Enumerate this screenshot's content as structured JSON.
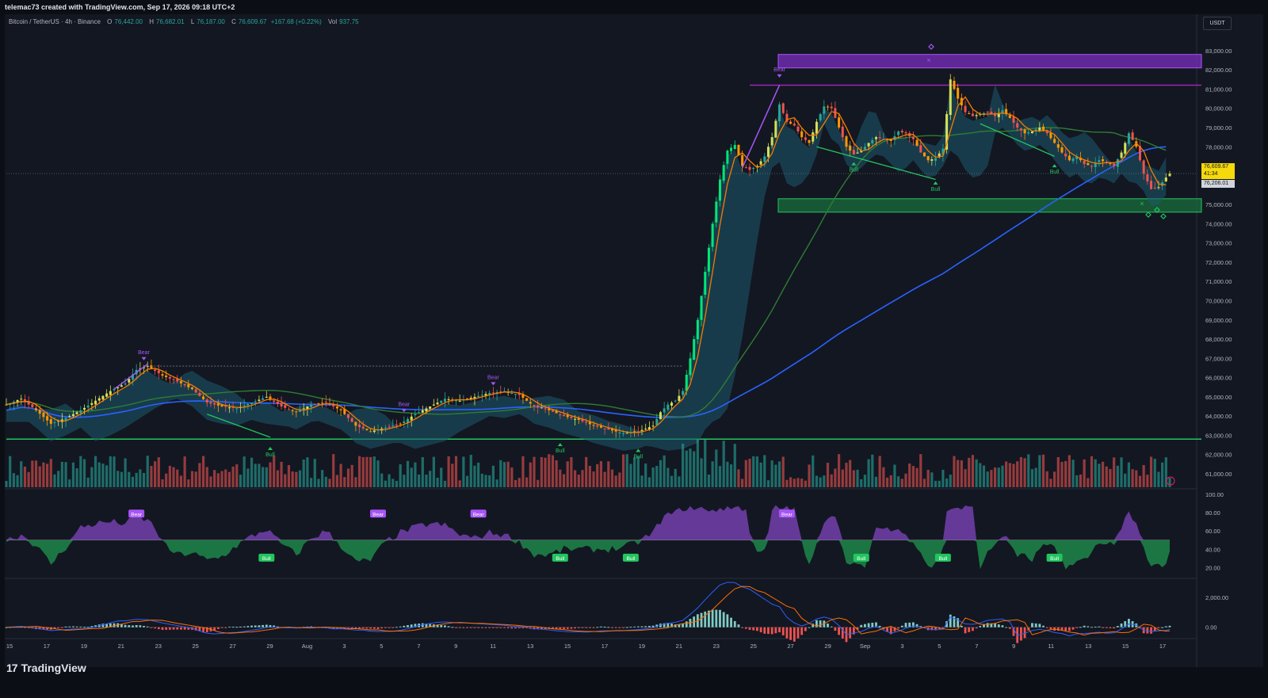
{
  "header": {
    "attribution": "telemac73 created with TradingView.com, Sep 17, 2026 09:18 UTC+2"
  },
  "legend": {
    "symbol": "Bitcoin / TetherUS · 4h · Binance",
    "open_label": "O",
    "open": "76,442.00",
    "high_label": "H",
    "high": "76,682.01",
    "low_label": "L",
    "low": "76,187.00",
    "close_label": "C",
    "close": "76,609.67",
    "change": "+167.68 (+0.22%)",
    "vol_label": "Vol",
    "vol": "937.75"
  },
  "currency_button": "USDT",
  "brand": {
    "name": "TradingView"
  },
  "colors": {
    "up": "#26a69a",
    "down": "#ef5350",
    "bull_green": "#22c55e",
    "bear_purple": "#a855f7",
    "ema_blue": "#2962ff",
    "ema_green": "#2e7d32",
    "ema_orange": "#f57c00",
    "cloud": "#1e5a6e"
  },
  "price_tags": {
    "last": "76,609.67",
    "countdown": "41:34",
    "secondary": "76,206.01"
  },
  "chart_data": [
    {
      "type": "candlestick",
      "pane": "price",
      "interval": "4h",
      "y_ticks": [
        "83,000.00",
        "82,000.00",
        "81,000.00",
        "80,000.00",
        "79,000.00",
        "78,000.00",
        "77,000.00",
        "75,000.00",
        "74,000.00",
        "73,000.00",
        "72,000.00",
        "71,000.00",
        "70,000.00",
        "69,000.00",
        "68,000.00",
        "67,000.00",
        "66,000.00",
        "65,000.00",
        "64,000.00",
        "63,000.00",
        "62,000.00",
        "61,000.00"
      ],
      "y_tick_values": [
        83000,
        82000,
        81000,
        80000,
        79000,
        78000,
        77000,
        75000,
        74000,
        73000,
        72000,
        71000,
        70000,
        69000,
        68000,
        67000,
        66000,
        65000,
        64000,
        63000,
        62000,
        61000
      ],
      "ylim": [
        60300,
        83900
      ],
      "x_ticks": [
        "15",
        "17",
        "19",
        "21",
        "23",
        "25",
        "27",
        "29",
        "Aug",
        "3",
        "5",
        "7",
        "9",
        "11",
        "13",
        "15",
        "17",
        "19",
        "21",
        "23",
        "25",
        "27",
        "29",
        "Sep",
        "3",
        "5",
        "7",
        "9",
        "11",
        "13",
        "15",
        "17"
      ],
      "close_path": [
        [
          0,
          64600
        ],
        [
          4,
          64900
        ],
        [
          8,
          64300
        ],
        [
          12,
          63600
        ],
        [
          16,
          63900
        ],
        [
          20,
          64300
        ],
        [
          24,
          64800
        ],
        [
          28,
          65300
        ],
        [
          32,
          65700
        ],
        [
          35,
          66400
        ],
        [
          38,
          66600
        ],
        [
          42,
          66100
        ],
        [
          46,
          65800
        ],
        [
          50,
          65400
        ],
        [
          54,
          64700
        ],
        [
          58,
          64500
        ],
        [
          62,
          64400
        ],
        [
          66,
          64700
        ],
        [
          70,
          65000
        ],
        [
          74,
          64500
        ],
        [
          78,
          64200
        ],
        [
          82,
          64600
        ],
        [
          86,
          64700
        ],
        [
          90,
          64300
        ],
        [
          94,
          63500
        ],
        [
          98,
          63200
        ],
        [
          102,
          63400
        ],
        [
          106,
          63600
        ],
        [
          110,
          64100
        ],
        [
          114,
          64500
        ],
        [
          118,
          64900
        ],
        [
          122,
          64800
        ],
        [
          126,
          65000
        ],
        [
          130,
          65200
        ],
        [
          134,
          65300
        ],
        [
          138,
          65100
        ],
        [
          142,
          64500
        ],
        [
          146,
          64300
        ],
        [
          150,
          64000
        ],
        [
          154,
          63800
        ],
        [
          158,
          63500
        ],
        [
          162,
          63300
        ],
        [
          166,
          63100
        ],
        [
          170,
          63200
        ],
        [
          174,
          63500
        ],
        [
          176,
          64200
        ],
        [
          178,
          64600
        ],
        [
          180,
          64800
        ],
        [
          182,
          65300
        ],
        [
          184,
          67000
        ],
        [
          186,
          69000
        ],
        [
          188,
          71500
        ],
        [
          190,
          74000
        ],
        [
          192,
          76300
        ],
        [
          194,
          77800
        ],
        [
          196,
          78100
        ],
        [
          198,
          77000
        ],
        [
          200,
          76800
        ],
        [
          202,
          77000
        ],
        [
          204,
          77500
        ],
        [
          206,
          78500
        ],
        [
          208,
          80200
        ],
        [
          210,
          79300
        ],
        [
          212,
          79100
        ],
        [
          214,
          78500
        ],
        [
          216,
          78200
        ],
        [
          218,
          79300
        ],
        [
          220,
          80100
        ],
        [
          222,
          80000
        ],
        [
          224,
          79000
        ],
        [
          226,
          78000
        ],
        [
          228,
          77600
        ],
        [
          230,
          77800
        ],
        [
          232,
          78200
        ],
        [
          234,
          78500
        ],
        [
          236,
          78400
        ],
        [
          238,
          78300
        ],
        [
          240,
          78800
        ],
        [
          242,
          78700
        ],
        [
          244,
          78400
        ],
        [
          246,
          77700
        ],
        [
          248,
          77300
        ],
        [
          250,
          77400
        ],
        [
          252,
          77900
        ],
        [
          254,
          81500
        ],
        [
          256,
          80500
        ],
        [
          258,
          79800
        ],
        [
          260,
          79600
        ],
        [
          262,
          79700
        ],
        [
          264,
          79800
        ],
        [
          266,
          79600
        ],
        [
          268,
          79900
        ],
        [
          270,
          79500
        ],
        [
          272,
          79000
        ],
        [
          274,
          78700
        ],
        [
          276,
          78800
        ],
        [
          278,
          79000
        ],
        [
          280,
          78700
        ],
        [
          282,
          78200
        ],
        [
          284,
          77700
        ],
        [
          286,
          77300
        ],
        [
          288,
          77500
        ],
        [
          290,
          77100
        ],
        [
          292,
          77000
        ],
        [
          294,
          77300
        ],
        [
          296,
          77200
        ],
        [
          298,
          77000
        ],
        [
          300,
          77700
        ],
        [
          302,
          78700
        ],
        [
          304,
          78000
        ],
        [
          306,
          76600
        ],
        [
          308,
          75800
        ],
        [
          310,
          75900
        ],
        [
          312,
          76400
        ],
        [
          313,
          76609
        ]
      ],
      "volume_profile": "relative",
      "annotations": [
        {
          "type": "label",
          "text": "Bear",
          "price": 66900,
          "bar": 37
        },
        {
          "type": "label",
          "text": "Bull",
          "price": 62400,
          "bar": 71
        },
        {
          "type": "label",
          "text": "Bear",
          "price": 64200,
          "bar": 107
        },
        {
          "type": "label",
          "text": "Bear",
          "price": 65600,
          "bar": 131
        },
        {
          "type": "label",
          "text": "Bull",
          "price": 62600,
          "bar": 149
        },
        {
          "type": "label",
          "text": "Bull",
          "price": 62300,
          "bar": 170
        },
        {
          "type": "label",
          "text": "Bear",
          "price": 81600,
          "bar": 208
        },
        {
          "type": "label",
          "text": "Bull",
          "price": 77200,
          "bar": 228
        },
        {
          "type": "label",
          "text": "Bull",
          "price": 76200,
          "bar": 250
        },
        {
          "type": "label",
          "text": "Bull",
          "price": 77100,
          "bar": 282
        }
      ],
      "zones": [
        {
          "type": "supply",
          "from": 82100,
          "to": 82800
        },
        {
          "type": "demand",
          "from": 74600,
          "to": 75300
        }
      ],
      "horizontal_lines": [
        81200,
        62800
      ]
    },
    {
      "type": "line",
      "pane": "oscillator",
      "y_ticks": [
        "100.00",
        "80.00",
        "60.00",
        "40.00",
        "20.00"
      ],
      "y_tick_values": [
        100,
        80,
        60,
        40,
        20
      ],
      "ylim": [
        10,
        105
      ],
      "midline": 50,
      "labels": [
        {
          "text": "Bear",
          "bar": 35
        },
        {
          "text": "Bull",
          "bar": 70
        },
        {
          "text": "Bear",
          "bar": 100
        },
        {
          "text": "Bear",
          "bar": 127
        },
        {
          "text": "Bull",
          "bar": 149
        },
        {
          "text": "Bull",
          "bar": 168
        },
        {
          "text": "Bear",
          "bar": 210
        },
        {
          "text": "Bull",
          "bar": 230
        },
        {
          "text": "Bull",
          "bar": 252
        },
        {
          "text": "Bull",
          "bar": 282
        }
      ]
    },
    {
      "type": "line",
      "pane": "macd",
      "y_ticks": [
        "2,000.00",
        "0.00"
      ],
      "y_tick_values": [
        2000,
        0
      ],
      "ylim": [
        -700,
        3200
      ]
    }
  ]
}
